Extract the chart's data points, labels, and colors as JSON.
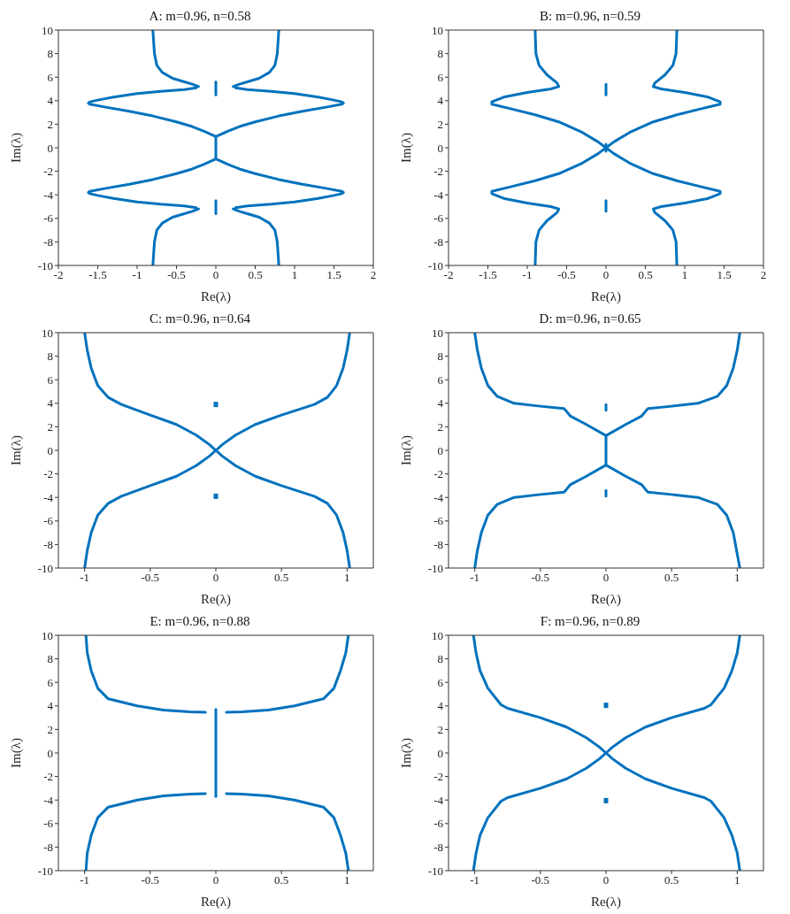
{
  "chart_data": [
    {
      "type": "line",
      "title": "A: m=0.96, n=0.58",
      "xlabel": "Re(λ)",
      "ylabel": "Im(λ)",
      "xlim": [
        -2,
        2
      ],
      "xticks": [
        -2,
        -1.5,
        -1,
        -0.5,
        0,
        0.5,
        1,
        1.5,
        2
      ],
      "ylim": [
        -10,
        10
      ],
      "yticks": [
        -10,
        -8,
        -6,
        -4,
        -2,
        0,
        2,
        4,
        6,
        8,
        10
      ],
      "series": [
        {
          "color": "#0072bd",
          "x": [
            0.8,
            0.79,
            0.78,
            0.75,
            0.68,
            0.55,
            0.4,
            0.3,
            0.22
          ],
          "values": [
            10,
            9,
            8,
            7,
            6.4,
            5.9,
            5.6,
            5.4,
            5.2
          ]
        },
        {
          "color": "#0072bd",
          "x": [
            -0.8,
            -0.79,
            -0.78,
            -0.75,
            -0.68,
            -0.55,
            -0.4,
            -0.3,
            -0.22
          ],
          "values": [
            10,
            9,
            8,
            7,
            6.4,
            5.9,
            5.6,
            5.4,
            5.2
          ]
        },
        {
          "color": "#0072bd",
          "x": [
            0.8,
            0.79,
            0.78,
            0.75,
            0.68,
            0.55,
            0.4,
            0.3,
            0.22
          ],
          "values": [
            -10,
            -9,
            -8,
            -7,
            -6.4,
            -5.9,
            -5.6,
            -5.4,
            -5.2
          ]
        },
        {
          "color": "#0072bd",
          "x": [
            -0.8,
            -0.79,
            -0.78,
            -0.75,
            -0.68,
            -0.55,
            -0.4,
            -0.3,
            -0.22
          ],
          "values": [
            -10,
            -9,
            -8,
            -7,
            -6.4,
            -5.9,
            -5.6,
            -5.4,
            -5.2
          ]
        },
        {
          "color": "#0072bd",
          "x": [
            0.25,
            0.4,
            0.7,
            1.0,
            1.3,
            1.5,
            1.6,
            1.62,
            1.6,
            1.4,
            1.1,
            0.8,
            0.5,
            0.3,
            0.15,
            0,
            0,
            0.15,
            0.3,
            0.5,
            0.8,
            1.1,
            1.4,
            1.6,
            1.62,
            1.6,
            1.5,
            1.3,
            1.0,
            0.7,
            0.4,
            0.25
          ],
          "values": [
            5.1,
            4.95,
            4.8,
            4.6,
            4.3,
            4.05,
            3.9,
            3.8,
            3.7,
            3.45,
            3.1,
            2.7,
            2.2,
            1.8,
            1.4,
            0.95,
            -0.95,
            -1.4,
            -1.8,
            -2.2,
            -2.7,
            -3.1,
            -3.45,
            -3.7,
            -3.8,
            -3.9,
            -4.05,
            -4.3,
            -4.6,
            -4.8,
            -4.95,
            -5.1
          ]
        },
        {
          "color": "#0072bd",
          "x": [
            -0.25,
            -0.4,
            -0.7,
            -1.0,
            -1.3,
            -1.5,
            -1.6,
            -1.62,
            -1.6,
            -1.4,
            -1.1,
            -0.8,
            -0.5,
            -0.3,
            -0.15,
            0
          ],
          "values": [
            5.1,
            4.95,
            4.8,
            4.6,
            4.3,
            4.05,
            3.9,
            3.8,
            3.7,
            3.45,
            3.1,
            2.7,
            2.2,
            1.8,
            1.4,
            0.95
          ]
        },
        {
          "color": "#0072bd",
          "x": [
            -0.25,
            -0.4,
            -0.7,
            -1.0,
            -1.3,
            -1.5,
            -1.6,
            -1.62,
            -1.6,
            -1.4,
            -1.1,
            -0.8,
            -0.5,
            -0.3,
            -0.15,
            0
          ],
          "values": [
            -5.1,
            -4.95,
            -4.8,
            -4.6,
            -4.3,
            -4.05,
            -3.9,
            -3.8,
            -3.7,
            -3.45,
            -3.1,
            -2.7,
            -2.2,
            -1.8,
            -1.4,
            -0.95
          ]
        },
        {
          "color": "#0072bd",
          "x": [
            0,
            0
          ],
          "values": [
            4.5,
            5.6
          ]
        },
        {
          "color": "#0072bd",
          "x": [
            0,
            0
          ],
          "values": [
            -4.5,
            -5.6
          ]
        }
      ]
    },
    {
      "type": "line",
      "title": "B: m=0.96, n=0.59",
      "xlabel": "Re(λ)",
      "ylabel": "Im(λ)",
      "xlim": [
        -2,
        2
      ],
      "xticks": [
        -2,
        -1.5,
        -1,
        -0.5,
        0,
        0.5,
        1,
        1.5,
        2
      ],
      "ylim": [
        -10,
        10
      ],
      "yticks": [
        -10,
        -8,
        -6,
        -4,
        -2,
        0,
        2,
        4,
        6,
        8,
        10
      ],
      "series": [
        {
          "color": "#0072bd",
          "x": [
            0.9,
            0.89,
            0.85,
            0.75,
            0.62,
            0.6,
            0.7,
            1.0,
            1.3,
            1.45,
            1.45,
            1.2,
            0.9,
            0.6,
            0.3,
            0.1,
            0,
            -0.1,
            -0.3,
            -0.6,
            -0.9,
            -1.2,
            -1.45,
            -1.45,
            -1.3,
            -1.0,
            -0.7,
            -0.6,
            -0.62,
            -0.75,
            -0.85,
            -0.89,
            -0.9
          ],
          "values": [
            10,
            8,
            7,
            6.2,
            5.5,
            5.2,
            5.0,
            4.7,
            4.3,
            3.9,
            3.7,
            3.3,
            2.8,
            2.2,
            1.3,
            0.5,
            0,
            -0.5,
            -1.3,
            -2.2,
            -2.8,
            -3.3,
            -3.7,
            -3.9,
            -4.3,
            -4.7,
            -5.0,
            -5.2,
            -5.5,
            -6.2,
            -7,
            -8,
            -10
          ]
        },
        {
          "color": "#0072bd",
          "x": [
            -0.9,
            -0.89,
            -0.85,
            -0.75,
            -0.62,
            -0.6,
            -0.7,
            -1.0,
            -1.3,
            -1.45,
            -1.45,
            -1.2,
            -0.9,
            -0.6,
            -0.3,
            -0.1,
            0,
            0.1,
            0.3,
            0.6,
            0.9,
            1.2,
            1.45,
            1.45,
            1.3,
            1.0,
            0.7,
            0.6,
            0.62,
            0.75,
            0.85,
            0.89,
            0.9
          ],
          "values": [
            10,
            8,
            7,
            6.2,
            5.5,
            5.2,
            5.0,
            4.7,
            4.3,
            3.9,
            3.7,
            3.3,
            2.8,
            2.2,
            1.3,
            0.5,
            0,
            -0.5,
            -1.3,
            -2.2,
            -2.8,
            -3.3,
            -3.7,
            -3.9,
            -4.3,
            -4.7,
            -5.0,
            -5.2,
            -5.5,
            -6.2,
            -7,
            -8,
            -10
          ]
        },
        {
          "color": "#0072bd",
          "x": [
            0,
            0
          ],
          "values": [
            -0.3,
            0.3
          ]
        },
        {
          "color": "#0072bd",
          "x": [
            0,
            0
          ],
          "values": [
            4.5,
            5.4
          ]
        },
        {
          "color": "#0072bd",
          "x": [
            0,
            0
          ],
          "values": [
            -4.5,
            -5.4
          ]
        }
      ]
    },
    {
      "type": "line",
      "title": "C: m=0.96, n=0.64",
      "xlabel": "Re(λ)",
      "ylabel": "Im(λ)",
      "xlim": [
        -1.2,
        1.2
      ],
      "xticks": [
        -1,
        -0.5,
        0,
        0.5,
        1
      ],
      "ylim": [
        -10,
        10
      ],
      "yticks": [
        -10,
        -8,
        -6,
        -4,
        -2,
        0,
        2,
        4,
        6,
        8,
        10
      ],
      "series": [
        {
          "color": "#0072bd",
          "x": [
            1.02,
            1.0,
            0.97,
            0.92,
            0.85,
            0.75,
            0.5,
            0.3,
            0.15,
            0.05,
            0,
            -0.05,
            -0.15,
            -0.3,
            -0.5,
            -0.72,
            -0.82,
            -0.9,
            -0.95,
            -0.98,
            -1.0
          ],
          "values": [
            10,
            8.5,
            7,
            5.5,
            4.5,
            3.9,
            3.0,
            2.2,
            1.3,
            0.5,
            0,
            -0.5,
            -1.3,
            -2.2,
            -3.0,
            -3.9,
            -4.5,
            -5.5,
            -7,
            -8.5,
            -10
          ]
        },
        {
          "color": "#0072bd",
          "x": [
            -1.0,
            -0.98,
            -0.95,
            -0.9,
            -0.82,
            -0.72,
            -0.5,
            -0.3,
            -0.15,
            -0.05,
            0,
            0.05,
            0.15,
            0.3,
            0.5,
            0.75,
            0.85,
            0.92,
            0.97,
            1.0,
            1.02
          ],
          "values": [
            10,
            8.5,
            7,
            5.5,
            4.5,
            3.9,
            3.0,
            2.2,
            1.3,
            0.5,
            0,
            -0.5,
            -1.3,
            -2.2,
            -3.0,
            -3.9,
            -4.5,
            -5.5,
            -7,
            -8.5,
            -10
          ]
        },
        {
          "type": "scatter",
          "marker": "square",
          "color": "#0072bd",
          "x": [
            0,
            0
          ],
          "values": [
            3.9,
            -3.9
          ]
        }
      ]
    },
    {
      "type": "line",
      "title": "D: m=0.96, n=0.65",
      "xlabel": "Re(λ)",
      "ylabel": "Im(λ)",
      "xlim": [
        -1.2,
        1.2
      ],
      "xticks": [
        -1,
        -0.5,
        0,
        0.5,
        1
      ],
      "ylim": [
        -10,
        10
      ],
      "yticks": [
        -10,
        -8,
        -6,
        -4,
        -2,
        0,
        2,
        4,
        6,
        8,
        10
      ],
      "series": [
        {
          "color": "#0072bd",
          "x": [
            1.02,
            1.0,
            0.97,
            0.92,
            0.85,
            0.7,
            0.5,
            0.32,
            0.3,
            0.27,
            0.15,
            0,
            0,
            0.15,
            0.27,
            0.3,
            0.32,
            0.5,
            0.7,
            0.85,
            0.92,
            0.97,
            1.02
          ],
          "values": [
            10,
            8.5,
            7,
            5.5,
            4.6,
            4.0,
            3.75,
            3.55,
            3.3,
            2.9,
            2.2,
            1.25,
            -1.25,
            -2.2,
            -2.9,
            -3.3,
            -3.55,
            -3.75,
            -4.0,
            -4.6,
            -5.5,
            -7,
            -10
          ]
        },
        {
          "color": "#0072bd",
          "x": [
            -1.0,
            -0.98,
            -0.95,
            -0.9,
            -0.83,
            -0.7,
            -0.5,
            -0.32,
            -0.3,
            -0.27,
            -0.15,
            0
          ],
          "values": [
            10,
            8.5,
            7,
            5.5,
            4.6,
            4.0,
            3.75,
            3.55,
            3.3,
            2.9,
            2.2,
            1.25
          ]
        },
        {
          "color": "#0072bd",
          "x": [
            -1.0,
            -0.98,
            -0.95,
            -0.9,
            -0.83,
            -0.7,
            -0.5,
            -0.32,
            -0.3,
            -0.27,
            -0.15,
            0
          ],
          "values": [
            -10,
            -8.5,
            -7,
            -5.5,
            -4.6,
            -4.0,
            -3.75,
            -3.55,
            -3.3,
            -2.9,
            -2.2,
            -1.25
          ]
        },
        {
          "color": "#0072bd",
          "x": [
            0,
            0
          ],
          "values": [
            3.4,
            3.9
          ]
        },
        {
          "color": "#0072bd",
          "x": [
            0,
            0
          ],
          "values": [
            -3.4,
            -3.9
          ]
        }
      ]
    },
    {
      "type": "line",
      "title": "E: m=0.96, n=0.88",
      "xlabel": "Re(λ)",
      "ylabel": "Im(λ)",
      "xlim": [
        -1.2,
        1.2
      ],
      "xticks": [
        -1,
        -0.5,
        0,
        0.5,
        1
      ],
      "ylim": [
        -10,
        10
      ],
      "yticks": [
        -10,
        -8,
        -6,
        -4,
        -2,
        0,
        2,
        4,
        6,
        8,
        10
      ],
      "series": [
        {
          "color": "#0072bd",
          "x": [
            1.01,
            0.99,
            0.95,
            0.9,
            0.82,
            0.6,
            0.4,
            0.2,
            0.08
          ],
          "values": [
            10,
            8.5,
            7,
            5.5,
            4.6,
            4.0,
            3.65,
            3.5,
            3.45
          ]
        },
        {
          "color": "#0072bd",
          "x": [
            -0.99,
            -0.98,
            -0.95,
            -0.9,
            -0.82,
            -0.6,
            -0.4,
            -0.2,
            -0.08
          ],
          "values": [
            10,
            8.5,
            7,
            5.5,
            4.6,
            4.0,
            3.65,
            3.5,
            3.45
          ]
        },
        {
          "color": "#0072bd",
          "x": [
            1.01,
            0.99,
            0.95,
            0.9,
            0.82,
            0.6,
            0.4,
            0.2,
            0.08
          ],
          "values": [
            -10,
            -8.5,
            -7,
            -5.5,
            -4.6,
            -4.0,
            -3.65,
            -3.5,
            -3.45
          ]
        },
        {
          "color": "#0072bd",
          "x": [
            -0.99,
            -0.98,
            -0.95,
            -0.9,
            -0.82,
            -0.6,
            -0.4,
            -0.2,
            -0.08
          ],
          "values": [
            -10,
            -8.5,
            -7,
            -5.5,
            -4.6,
            -4.0,
            -3.65,
            -3.5,
            -3.45
          ]
        },
        {
          "color": "#0072bd",
          "x": [
            0,
            0
          ],
          "values": [
            3.7,
            -3.7
          ]
        }
      ]
    },
    {
      "type": "line",
      "title": "F: m=0.96, n=0.89",
      "xlabel": "Re(λ)",
      "ylabel": "Im(λ)",
      "xlim": [
        -1.2,
        1.2
      ],
      "xticks": [
        -1,
        -0.5,
        0,
        0.5,
        1
      ],
      "ylim": [
        -10,
        10
      ],
      "yticks": [
        -10,
        -8,
        -6,
        -4,
        -2,
        0,
        2,
        4,
        6,
        8,
        10
      ],
      "series": [
        {
          "color": "#0072bd",
          "x": [
            1.02,
            1.0,
            0.96,
            0.9,
            0.85,
            0.8,
            0.75,
            0.5,
            0.3,
            0.15,
            0.05,
            0,
            -0.05,
            -0.15,
            -0.3,
            -0.5,
            -0.75,
            -0.8,
            -0.85,
            -0.9,
            -0.96,
            -0.99,
            -1.01
          ],
          "values": [
            10,
            8.5,
            7,
            5.5,
            4.8,
            4.1,
            3.8,
            3.0,
            2.2,
            1.3,
            0.5,
            0,
            -0.5,
            -1.3,
            -2.2,
            -3.0,
            -3.8,
            -4.1,
            -4.8,
            -5.5,
            -7,
            -8.5,
            -10
          ]
        },
        {
          "color": "#0072bd",
          "x": [
            -1.01,
            -0.99,
            -0.96,
            -0.9,
            -0.85,
            -0.8,
            -0.75,
            -0.5,
            -0.3,
            -0.15,
            -0.05,
            0,
            0.05,
            0.15,
            0.3,
            0.5,
            0.75,
            0.8,
            0.85,
            0.9,
            0.96,
            1.0,
            1.02
          ],
          "values": [
            10,
            8.5,
            7,
            5.5,
            4.8,
            4.1,
            3.8,
            3.0,
            2.2,
            1.3,
            0.5,
            0,
            -0.5,
            -1.3,
            -2.2,
            -3.0,
            -3.8,
            -4.1,
            -4.8,
            -5.5,
            -7,
            -8.5,
            -10
          ]
        },
        {
          "type": "scatter",
          "marker": "square",
          "color": "#0072bd",
          "x": [
            0,
            0
          ],
          "values": [
            4.05,
            -4.05
          ]
        }
      ]
    }
  ]
}
